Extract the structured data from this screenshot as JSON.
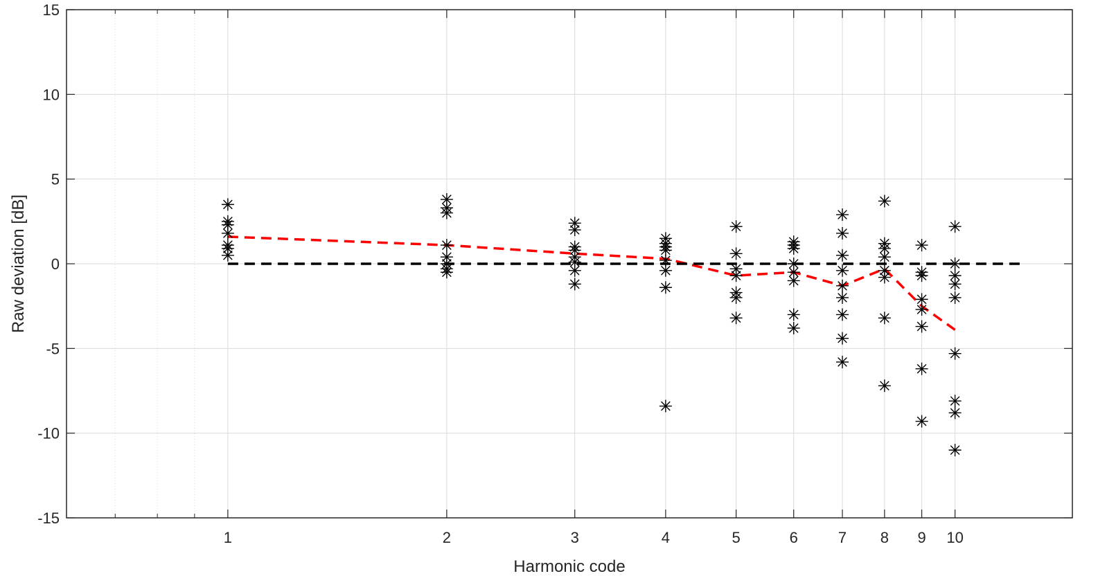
{
  "chart_data": {
    "type": "scatter",
    "title": "",
    "xlabel": "Harmonic code",
    "ylabel": "Raw deviation [dB]",
    "xscale": "log",
    "xlim": [
      0.6,
      14.5
    ],
    "ylim": [
      -15,
      15
    ],
    "xticks": [
      1,
      2,
      3,
      4,
      5,
      6,
      7,
      8,
      9,
      10
    ],
    "xtick_labels": [
      "1",
      "2",
      "3",
      "4",
      "5",
      "6",
      "7",
      "8",
      "9",
      "10"
    ],
    "yticks": [
      -15,
      -10,
      -5,
      0,
      5,
      10,
      15
    ],
    "ytick_labels": [
      "-15",
      "-10",
      "-5",
      "0",
      "5",
      "10",
      "15"
    ],
    "grid": true,
    "minor_grid": true,
    "legend": "none",
    "colors": {
      "points": "#000000",
      "mean_line": "#ff0000",
      "zero_line": "#000000",
      "grid": "#d9d9d9",
      "axes": "#262626"
    },
    "scatter": {
      "name": "",
      "marker": "asterisk",
      "points": [
        {
          "x": 1,
          "y": 3.5
        },
        {
          "x": 1,
          "y": 2.5
        },
        {
          "x": 1,
          "y": 2.3
        },
        {
          "x": 1,
          "y": 1.8
        },
        {
          "x": 1,
          "y": 1.1
        },
        {
          "x": 1,
          "y": 0.9
        },
        {
          "x": 1,
          "y": 0.5
        },
        {
          "x": 2,
          "y": 3.8
        },
        {
          "x": 2,
          "y": 3.3
        },
        {
          "x": 2,
          "y": 3.0
        },
        {
          "x": 2,
          "y": 1.1
        },
        {
          "x": 2,
          "y": 0.4
        },
        {
          "x": 2,
          "y": 0.0
        },
        {
          "x": 2,
          "y": -0.3
        },
        {
          "x": 2,
          "y": -0.5
        },
        {
          "x": 3,
          "y": 2.4
        },
        {
          "x": 3,
          "y": 2.0
        },
        {
          "x": 3,
          "y": 1.0
        },
        {
          "x": 3,
          "y": 0.8
        },
        {
          "x": 3,
          "y": 0.4
        },
        {
          "x": 3,
          "y": 0.1
        },
        {
          "x": 3,
          "y": -0.4
        },
        {
          "x": 3,
          "y": -1.2
        },
        {
          "x": 4,
          "y": 1.5
        },
        {
          "x": 4,
          "y": 1.2
        },
        {
          "x": 4,
          "y": 1.0
        },
        {
          "x": 4,
          "y": 0.8
        },
        {
          "x": 4,
          "y": 0.2
        },
        {
          "x": 4,
          "y": -0.4
        },
        {
          "x": 4,
          "y": -1.4
        },
        {
          "x": 4,
          "y": -8.4
        },
        {
          "x": 5,
          "y": 2.2
        },
        {
          "x": 5,
          "y": 0.6
        },
        {
          "x": 5,
          "y": -0.3
        },
        {
          "x": 5,
          "y": -0.7
        },
        {
          "x": 5,
          "y": -1.7
        },
        {
          "x": 5,
          "y": -2.0
        },
        {
          "x": 5,
          "y": -3.2
        },
        {
          "x": 6,
          "y": 1.3
        },
        {
          "x": 6,
          "y": 1.1
        },
        {
          "x": 6,
          "y": 0.9
        },
        {
          "x": 6,
          "y": 0.0
        },
        {
          "x": 6,
          "y": -0.5
        },
        {
          "x": 6,
          "y": -1.0
        },
        {
          "x": 6,
          "y": -3.0
        },
        {
          "x": 6,
          "y": -3.8
        },
        {
          "x": 7,
          "y": 2.9
        },
        {
          "x": 7,
          "y": 1.8
        },
        {
          "x": 7,
          "y": 0.5
        },
        {
          "x": 7,
          "y": -0.4
        },
        {
          "x": 7,
          "y": -1.3
        },
        {
          "x": 7,
          "y": -2.0
        },
        {
          "x": 7,
          "y": -3.0
        },
        {
          "x": 7,
          "y": -4.4
        },
        {
          "x": 7,
          "y": -5.8
        },
        {
          "x": 8,
          "y": 3.7
        },
        {
          "x": 8,
          "y": 1.2
        },
        {
          "x": 8,
          "y": 0.9
        },
        {
          "x": 8,
          "y": 0.4
        },
        {
          "x": 8,
          "y": -0.4
        },
        {
          "x": 8,
          "y": -0.8
        },
        {
          "x": 8,
          "y": -3.2
        },
        {
          "x": 8,
          "y": -7.2
        },
        {
          "x": 9,
          "y": 1.1
        },
        {
          "x": 9,
          "y": -0.5
        },
        {
          "x": 9,
          "y": -0.7
        },
        {
          "x": 9,
          "y": -2.1
        },
        {
          "x": 9,
          "y": -2.7
        },
        {
          "x": 9,
          "y": -3.7
        },
        {
          "x": 9,
          "y": -6.2
        },
        {
          "x": 9,
          "y": -9.3
        },
        {
          "x": 10,
          "y": 2.2
        },
        {
          "x": 10,
          "y": 0.0
        },
        {
          "x": 10,
          "y": -0.7
        },
        {
          "x": 10,
          "y": -1.2
        },
        {
          "x": 10,
          "y": -2.0
        },
        {
          "x": 10,
          "y": -5.3
        },
        {
          "x": 10,
          "y": -8.1
        },
        {
          "x": 10,
          "y": -8.8
        },
        {
          "x": 10,
          "y": -11.0
        }
      ]
    },
    "series": [
      {
        "name": "",
        "style": "dashed",
        "color": "#ff0000",
        "x": [
          1,
          2,
          3,
          4,
          5,
          6,
          7,
          8,
          9,
          10
        ],
        "y": [
          1.6,
          1.1,
          0.6,
          0.3,
          -0.7,
          -0.5,
          -1.3,
          -0.3,
          -2.5,
          -3.9
        ]
      },
      {
        "name": "",
        "style": "dashed",
        "color": "#000000",
        "x": [
          1,
          12.5
        ],
        "y": [
          0,
          0
        ]
      }
    ]
  }
}
